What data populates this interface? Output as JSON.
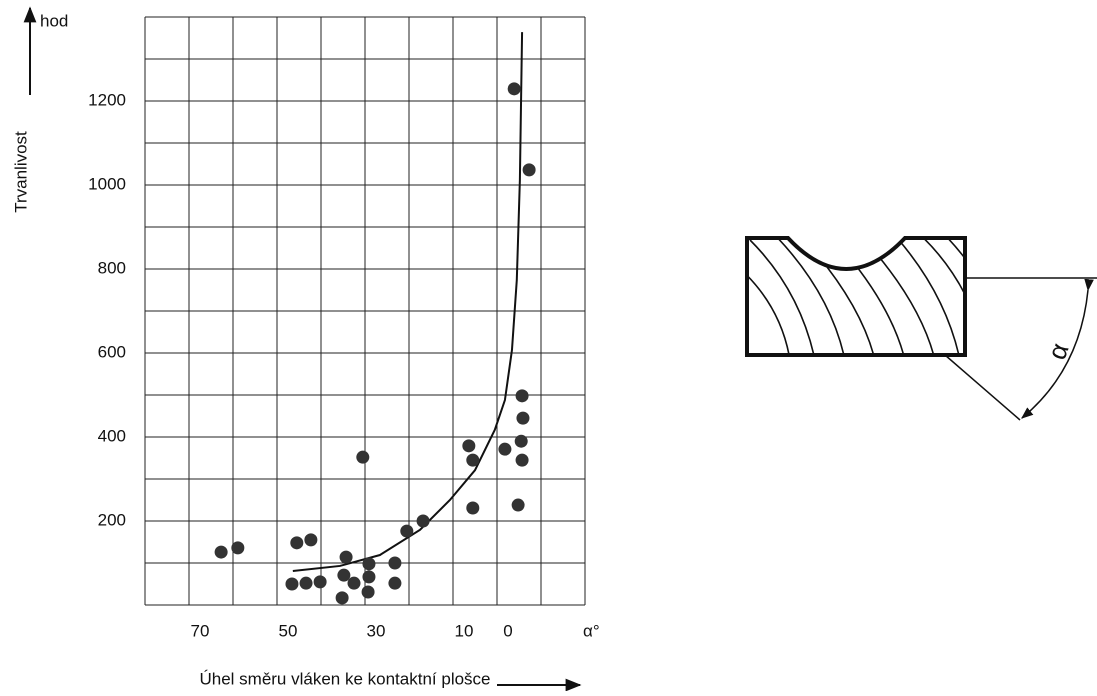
{
  "chart_data": {
    "type": "scatter",
    "y_label": "Trvanlivost",
    "y_unit": "hod",
    "x_unit": "α°",
    "x_label": "Úhel směru vláken ke kontaktní plošce",
    "xlim": [
      82.5,
      -17.5
    ],
    "xticks": [
      70,
      50,
      30,
      10,
      0
    ],
    "ylim": [
      0,
      1400
    ],
    "yticks": [
      200,
      400,
      600,
      800,
      1000,
      1200
    ],
    "grid": true,
    "color": "#333333",
    "points": {
      "x": [
        65.2,
        61.4,
        48.0,
        44.8,
        49.1,
        45.9,
        42.7,
        36.8,
        37.3,
        35.0,
        37.7,
        33.0,
        31.6,
        31.6,
        31.8,
        25.7,
        25.7,
        23.0,
        19.3,
        8.9,
        8.0,
        8.0,
        0.7,
        -1.4,
        -4.8,
        -3.2,
        -3.4,
        -3.0,
        -3.2,
        -2.3
      ],
      "y": [
        126,
        136,
        148,
        155,
        50,
        52,
        55,
        114,
        71,
        52,
        17,
        352,
        98,
        67,
        31,
        100,
        52,
        176,
        200,
        379,
        345,
        231,
        371,
        1229,
        1036,
        498,
        445,
        390,
        345,
        238
      ]
    },
    "curve": {
      "x": [
        48.9,
        38.2,
        29.1,
        20,
        13.2,
        7.5,
        3,
        0.7,
        -0.9,
        -2,
        -2.7,
        -3.2
      ],
      "y": [
        81,
        93,
        119,
        179,
        250,
        321,
        417,
        488,
        607,
        774,
        1012,
        1364
      ]
    }
  },
  "diagram": {
    "angle_label": "α"
  }
}
